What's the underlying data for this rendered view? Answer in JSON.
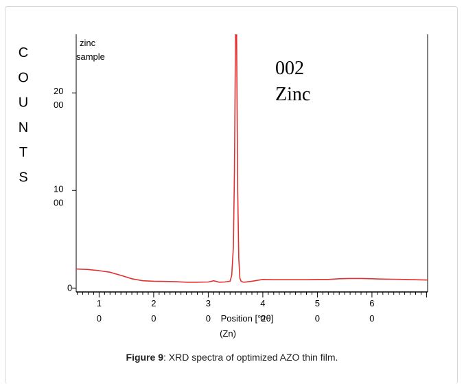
{
  "chart_data": {
    "type": "line",
    "ylabel_letters": [
      "C",
      "O",
      "U",
      "N",
      "T",
      "S"
    ],
    "inset_label_lines": [
      "zinc",
      "sample"
    ],
    "peak_annotation_lines": [
      "002",
      "Zinc"
    ],
    "xlabel_lines": [
      "Position [°2θ]",
      "(Zn)"
    ],
    "x_ticks": [
      {
        "value": 10,
        "top": "1",
        "bottom": "0"
      },
      {
        "value": 20,
        "top": "2",
        "bottom": "0"
      },
      {
        "value": 30,
        "top": "3",
        "bottom": "0"
      },
      {
        "value": 40,
        "top": "4",
        "bottom": "0"
      },
      {
        "value": 50,
        "top": "5",
        "bottom": "0"
      },
      {
        "value": 60,
        "top": "6",
        "bottom": "0"
      }
    ],
    "y_ticks": [
      {
        "value": 0,
        "top": "0",
        "bottom": ""
      },
      {
        "value": 1000,
        "top": "10",
        "bottom": "00"
      },
      {
        "value": 2000,
        "top": "20",
        "bottom": "00"
      }
    ],
    "xlim": [
      5.8,
      70.2
    ],
    "ylim": [
      -40,
      2600
    ],
    "grid": false,
    "line_color": "#e03030",
    "series": [
      {
        "x": [
          5.8,
          8,
          10,
          12,
          14,
          16,
          18,
          20,
          22,
          24,
          26,
          28,
          30,
          31,
          32,
          33,
          34,
          34.3,
          34.6,
          34.8,
          35.0,
          35.2,
          35.4,
          35.6,
          35.8,
          36.0,
          36.3,
          36.6,
          37,
          38,
          40,
          42,
          44,
          46,
          48,
          50,
          52,
          54,
          56,
          58,
          60,
          62,
          64,
          66,
          68,
          70.2
        ],
        "y": [
          195,
          190,
          178,
          162,
          130,
          95,
          75,
          70,
          68,
          65,
          60,
          60,
          62,
          75,
          60,
          62,
          70,
          130,
          420,
          1200,
          2600,
          2600,
          1000,
          300,
          100,
          72,
          62,
          60,
          63,
          70,
          88,
          85,
          85,
          85,
          85,
          88,
          88,
          95,
          98,
          98,
          95,
          92,
          90,
          88,
          85,
          82
        ]
      }
    ]
  },
  "caption": {
    "label": "Figure 9",
    "text": ": XRD spectra of optimized AZO thin film."
  }
}
